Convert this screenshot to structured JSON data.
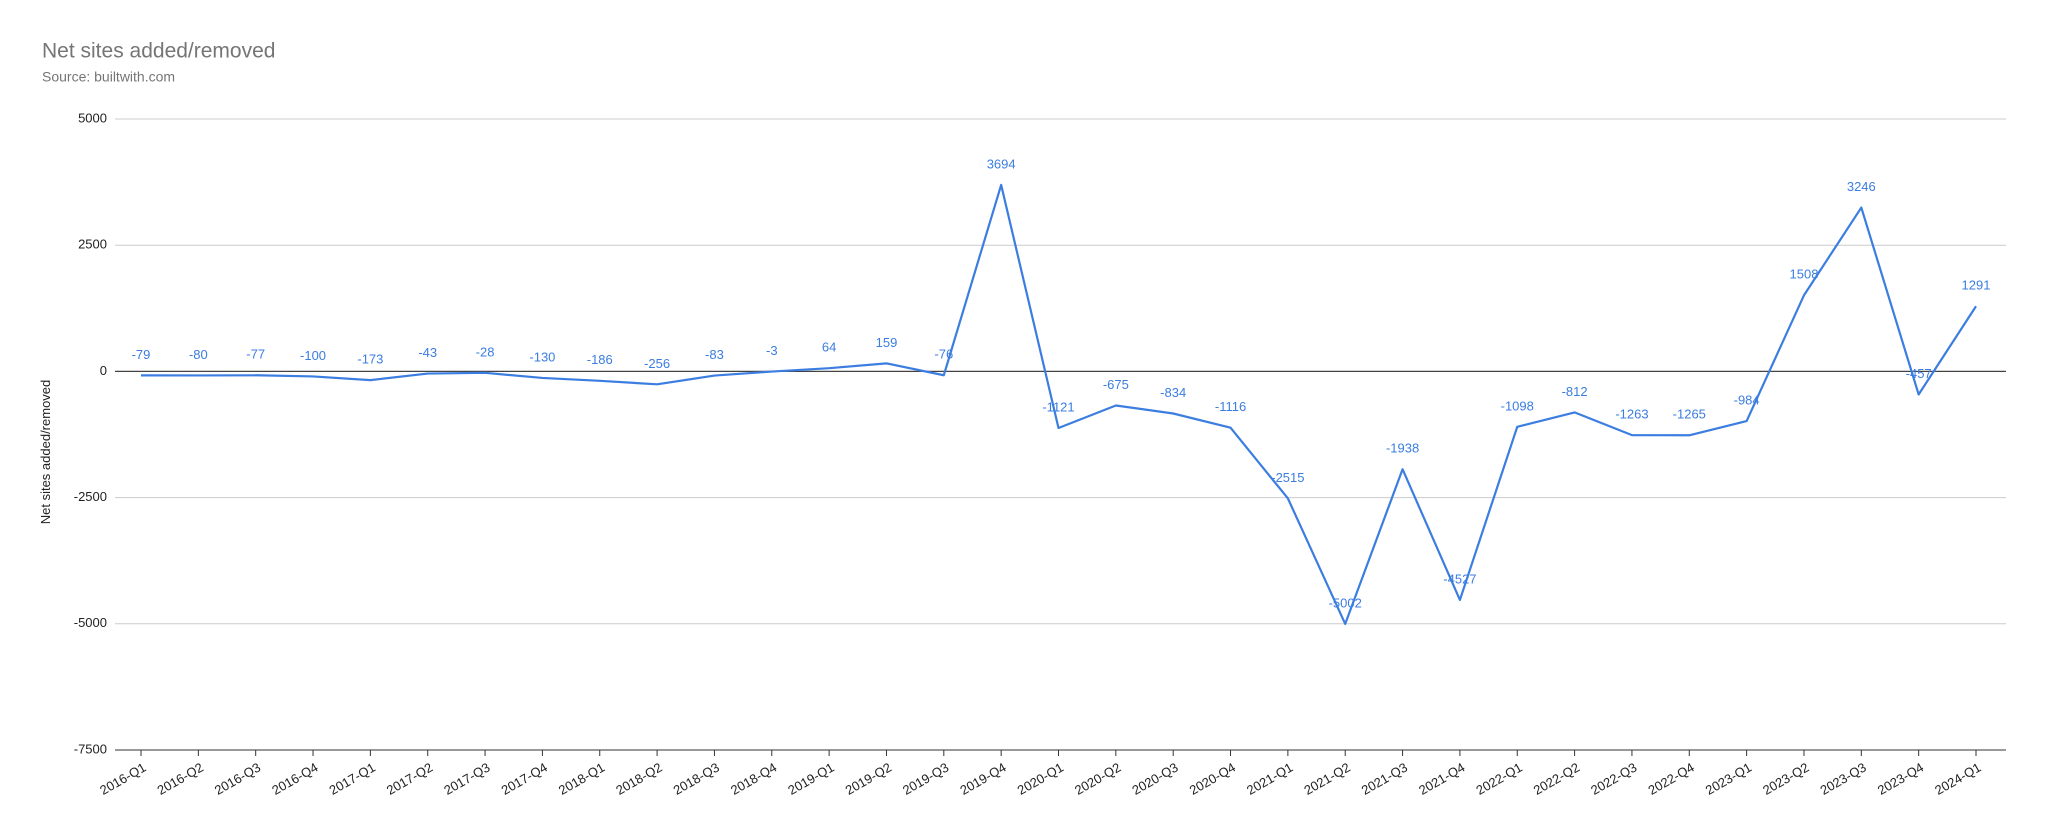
{
  "chart_data": {
    "type": "line",
    "title": "Net sites added/removed",
    "subtitle": "Source: builtwith.com",
    "y_label": "Net sites added/removed",
    "categories": [
      "2016-Q1",
      "2016-Q2",
      "2016-Q3",
      "2016-Q4",
      "2017-Q1",
      "2017-Q2",
      "2017-Q3",
      "2017-Q4",
      "2018-Q1",
      "2018-Q2",
      "2018-Q3",
      "2018-Q4",
      "2019-Q1",
      "2019-Q2",
      "2019-Q3",
      "2019-Q4",
      "2020-Q1",
      "2020-Q2",
      "2020-Q3",
      "2020-Q4",
      "2021-Q1",
      "2021-Q2",
      "2021-Q3",
      "2021-Q4",
      "2022-Q1",
      "2022-Q2",
      "2022-Q3",
      "2022-Q4",
      "2023-Q1",
      "2023-Q2",
      "2023-Q3",
      "2023-Q4",
      "2024-Q1"
    ],
    "values": [
      -79,
      -80,
      -77,
      -100,
      -173,
      -43,
      -28,
      -130,
      -186,
      -256,
      -83,
      -3,
      64,
      159,
      -76,
      3694,
      -1121,
      -675,
      -834,
      -1116,
      -2515,
      -5002,
      -1938,
      -4527,
      -1098,
      -812,
      -1263,
      -1265,
      -984,
      1508,
      3246,
      -457,
      1291
    ],
    "color": "#3b7de0",
    "ylim": [
      -7500,
      5000
    ],
    "yticks": [
      -7500,
      -5000,
      -2500,
      0,
      2500,
      5000
    ],
    "grid": true
  }
}
